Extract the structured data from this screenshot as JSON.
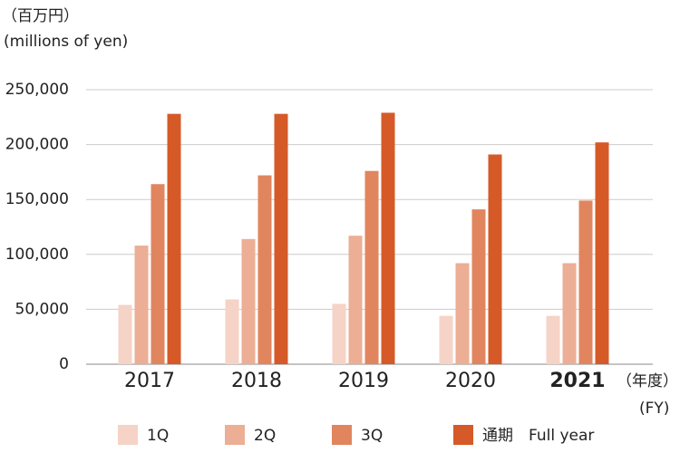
{
  "chart_data": {
    "type": "bar",
    "unit_label": "（百万円）",
    "unit_label_en": "(millions of yen)",
    "x_label": "（年度）",
    "x_label_en": "(FY)",
    "categories": [
      "2017",
      "2018",
      "2019",
      "2020",
      "2021"
    ],
    "bold_category_index": 4,
    "series": [
      {
        "name": "1Q",
        "color": "#f5d3c6",
        "values": [
          54000,
          59000,
          55000,
          44000,
          44000
        ]
      },
      {
        "name": "2Q",
        "color": "#ecae94",
        "values": [
          108000,
          114000,
          117000,
          92000,
          92000
        ]
      },
      {
        "name": "3Q",
        "color": "#e1855f",
        "values": [
          164000,
          172000,
          176000,
          141000,
          149000
        ]
      },
      {
        "name": "通期　Full year",
        "color": "#d65a28",
        "values": [
          228000,
          228000,
          229000,
          191000,
          202000
        ]
      }
    ],
    "ylim": [
      0,
      250000
    ],
    "yticks": [
      0,
      {
        "value": 50000,
        "label": "50,000"
      },
      {
        "value": 100000,
        "label": "100,000"
      },
      {
        "value": 150000,
        "label": "150,000"
      },
      {
        "value": 200000,
        "label": "200,000"
      },
      {
        "value": 250000,
        "label": "250,000"
      }
    ],
    "grid": true
  }
}
